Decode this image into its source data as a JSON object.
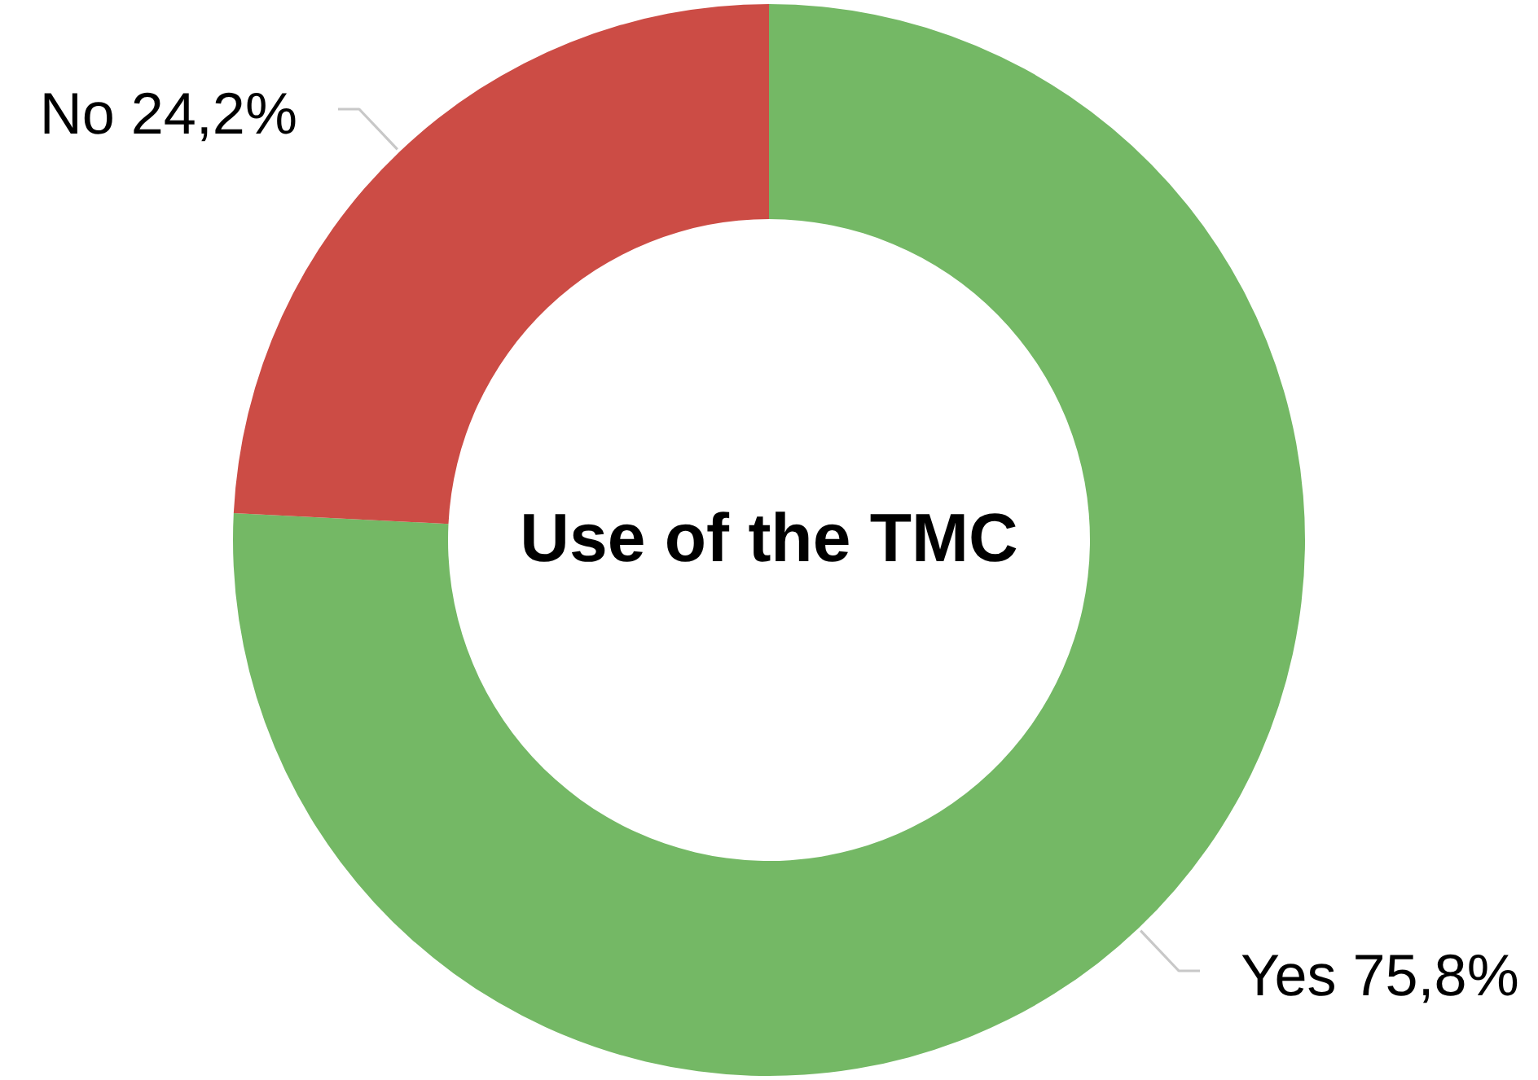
{
  "chart_data": {
    "type": "donut",
    "title": "Use of the TMC",
    "categories": [
      "Yes",
      "No"
    ],
    "values": [
      75.8,
      24.2
    ],
    "colors": [
      "#74b865",
      "#cc4c45"
    ],
    "value_labels": [
      "75,8%",
      "24,2%"
    ]
  }
}
